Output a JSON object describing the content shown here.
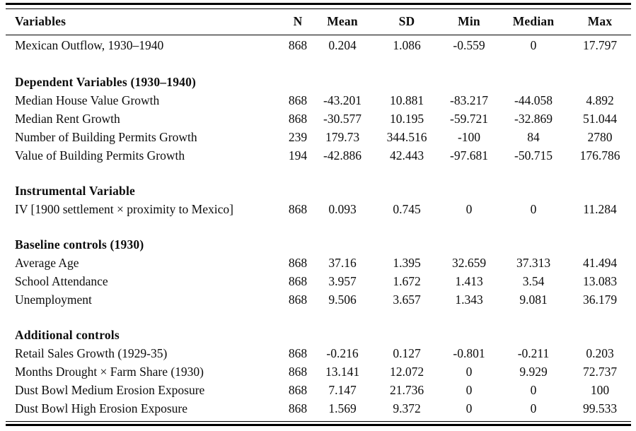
{
  "colors": {
    "background": "#ffffff",
    "text": "#0d0d0d",
    "rule": "#000000"
  },
  "table": {
    "columns": [
      "Variables",
      "N",
      "Mean",
      "SD",
      "Min",
      "Median",
      "Max"
    ],
    "sections": [
      {
        "header": null,
        "rows": [
          {
            "label": "Mexican Outflow, 1930–1940",
            "values": [
              "868",
              "0.204",
              "1.086",
              "-0.559",
              "0",
              "17.797"
            ]
          }
        ]
      },
      {
        "header": "Dependent Variables (1930–1940)",
        "rows": [
          {
            "label": "Median House Value Growth",
            "values": [
              "868",
              "-43.201",
              "10.881",
              "-83.217",
              "-44.058",
              "4.892"
            ]
          },
          {
            "label": "Median Rent Growth",
            "values": [
              "868",
              "-30.577",
              "10.195",
              "-59.721",
              "-32.869",
              "51.044"
            ]
          },
          {
            "label": "Number of Building Permits Growth",
            "values": [
              "239",
              "179.73",
              "344.516",
              "-100",
              "84",
              "2780"
            ]
          },
          {
            "label": "Value of Building Permits Growth",
            "values": [
              "194",
              "-42.886",
              "42.443",
              "-97.681",
              "-50.715",
              "176.786"
            ]
          }
        ]
      },
      {
        "header": "Instrumental Variable",
        "rows": [
          {
            "label": "IV [1900 settlement × proximity to Mexico]",
            "values": [
              "868",
              "0.093",
              "0.745",
              "0",
              "0",
              "11.284"
            ]
          }
        ]
      },
      {
        "header": "Baseline controls (1930)",
        "rows": [
          {
            "label": "Average Age",
            "values": [
              "868",
              "37.16",
              "1.395",
              "32.659",
              "37.313",
              "41.494"
            ]
          },
          {
            "label": "School Attendance",
            "values": [
              "868",
              "3.957",
              "1.672",
              "1.413",
              "3.54",
              "13.083"
            ]
          },
          {
            "label": "Unemployment",
            "values": [
              "868",
              "9.506",
              "3.657",
              "1.343",
              "9.081",
              "36.179"
            ]
          }
        ]
      },
      {
        "header": "Additional controls",
        "rows": [
          {
            "label": "Retail Sales Growth (1929-35)",
            "values": [
              "868",
              "-0.216",
              "0.127",
              "-0.801",
              "-0.211",
              "0.203"
            ]
          },
          {
            "label": "Months Drought × Farm Share (1930)",
            "values": [
              "868",
              "13.141",
              "12.072",
              "0",
              "9.929",
              "72.737"
            ]
          },
          {
            "label": "Dust Bowl Medium Erosion Exposure",
            "values": [
              "868",
              "7.147",
              "21.736",
              "0",
              "0",
              "100"
            ]
          },
          {
            "label": "Dust Bowl High Erosion Exposure",
            "values": [
              "868",
              "1.569",
              "9.372",
              "0",
              "0",
              "99.533"
            ]
          }
        ]
      }
    ]
  }
}
